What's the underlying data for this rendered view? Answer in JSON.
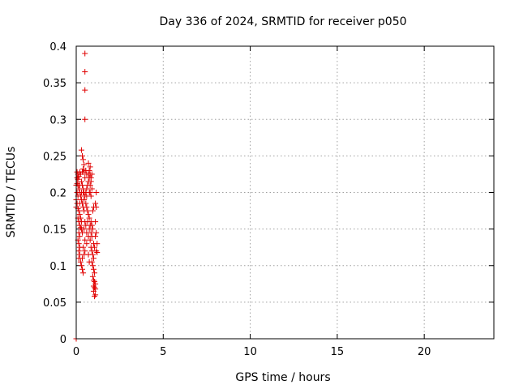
{
  "chart_data": {
    "type": "scatter",
    "title": "Day 336 of 2024, SRMTID for receiver p050",
    "xlabel": "GPS time / hours",
    "ylabel": "SRMTID / TECUs",
    "xlim": [
      0,
      24
    ],
    "ylim": [
      0,
      0.4
    ],
    "xticks": [
      "0",
      "5",
      "10",
      "15",
      "20"
    ],
    "yticks": [
      "0",
      "0.05",
      "0.1",
      "0.15",
      "0.2",
      "0.25",
      "0.3",
      "0.35",
      "0.4"
    ],
    "grid": true,
    "marker": "+",
    "color": "#e00000",
    "points": [
      [
        0.0,
        0.0
      ],
      [
        0.5,
        0.39
      ],
      [
        0.5,
        0.365
      ],
      [
        0.5,
        0.34
      ],
      [
        0.5,
        0.3
      ],
      [
        0.3,
        0.258
      ],
      [
        0.35,
        0.25
      ],
      [
        0.4,
        0.245
      ],
      [
        0.45,
        0.238
      ],
      [
        0.05,
        0.228
      ],
      [
        0.1,
        0.225
      ],
      [
        0.15,
        0.222
      ],
      [
        0.2,
        0.228
      ],
      [
        0.25,
        0.225
      ],
      [
        0.1,
        0.218
      ],
      [
        0.05,
        0.212
      ],
      [
        0.0,
        0.21
      ],
      [
        0.15,
        0.205
      ],
      [
        0.2,
        0.2
      ],
      [
        0.05,
        0.2
      ],
      [
        0.1,
        0.195
      ],
      [
        0.0,
        0.19
      ],
      [
        0.05,
        0.185
      ],
      [
        0.0,
        0.18
      ],
      [
        0.1,
        0.178
      ],
      [
        0.15,
        0.175
      ],
      [
        0.2,
        0.17
      ],
      [
        0.1,
        0.165
      ],
      [
        0.15,
        0.16
      ],
      [
        0.2,
        0.155
      ],
      [
        0.25,
        0.152
      ],
      [
        0.3,
        0.15
      ],
      [
        0.15,
        0.145
      ],
      [
        0.2,
        0.14
      ],
      [
        0.1,
        0.135
      ],
      [
        0.15,
        0.13
      ],
      [
        0.2,
        0.125
      ],
      [
        0.15,
        0.12
      ],
      [
        0.2,
        0.115
      ],
      [
        0.15,
        0.11
      ],
      [
        0.25,
        0.105
      ],
      [
        0.3,
        0.1
      ],
      [
        0.35,
        0.095
      ],
      [
        0.4,
        0.09
      ],
      [
        0.3,
        0.215
      ],
      [
        0.35,
        0.21
      ],
      [
        0.4,
        0.205
      ],
      [
        0.45,
        0.2
      ],
      [
        0.5,
        0.195
      ],
      [
        0.55,
        0.2
      ],
      [
        0.6,
        0.205
      ],
      [
        0.65,
        0.21
      ],
      [
        0.7,
        0.215
      ],
      [
        0.75,
        0.22
      ],
      [
        0.7,
        0.225
      ],
      [
        0.75,
        0.23
      ],
      [
        0.8,
        0.235
      ],
      [
        0.7,
        0.24
      ],
      [
        0.8,
        0.225
      ],
      [
        0.85,
        0.22
      ],
      [
        0.9,
        0.225
      ],
      [
        0.85,
        0.215
      ],
      [
        0.8,
        0.21
      ],
      [
        0.9,
        0.205
      ],
      [
        0.75,
        0.2
      ],
      [
        0.6,
        0.195
      ],
      [
        0.55,
        0.185
      ],
      [
        0.6,
        0.18
      ],
      [
        0.65,
        0.175
      ],
      [
        0.7,
        0.17
      ],
      [
        0.75,
        0.165
      ],
      [
        0.5,
        0.16
      ],
      [
        0.55,
        0.155
      ],
      [
        0.45,
        0.15
      ],
      [
        0.6,
        0.145
      ],
      [
        0.7,
        0.14
      ],
      [
        0.5,
        0.135
      ],
      [
        0.6,
        0.13
      ],
      [
        0.4,
        0.125
      ],
      [
        0.5,
        0.12
      ],
      [
        0.45,
        0.115
      ],
      [
        0.35,
        0.11
      ],
      [
        0.4,
        0.2
      ],
      [
        0.45,
        0.19
      ],
      [
        0.35,
        0.185
      ],
      [
        0.4,
        0.18
      ],
      [
        0.45,
        0.175
      ],
      [
        0.85,
        0.16
      ],
      [
        0.9,
        0.155
      ],
      [
        0.95,
        0.15
      ],
      [
        0.85,
        0.145
      ],
      [
        0.9,
        0.14
      ],
      [
        0.8,
        0.135
      ],
      [
        0.85,
        0.125
      ],
      [
        0.9,
        0.12
      ],
      [
        0.95,
        0.115
      ],
      [
        1.0,
        0.11
      ],
      [
        0.9,
        0.105
      ],
      [
        0.95,
        0.1
      ],
      [
        1.0,
        0.095
      ],
      [
        1.05,
        0.09
      ],
      [
        0.95,
        0.085
      ],
      [
        1.0,
        0.08
      ],
      [
        1.05,
        0.078
      ],
      [
        1.1,
        0.075
      ],
      [
        1.0,
        0.072
      ],
      [
        1.05,
        0.07
      ],
      [
        1.1,
        0.068
      ],
      [
        1.0,
        0.065
      ],
      [
        1.1,
        0.06
      ],
      [
        1.05,
        0.058
      ],
      [
        1.15,
        0.2
      ],
      [
        1.1,
        0.185
      ],
      [
        1.15,
        0.18
      ],
      [
        1.1,
        0.16
      ],
      [
        1.15,
        0.145
      ],
      [
        1.1,
        0.14
      ],
      [
        1.2,
        0.13
      ],
      [
        1.15,
        0.12
      ],
      [
        1.2,
        0.118
      ],
      [
        1.05,
        0.125
      ],
      [
        1.0,
        0.13
      ],
      [
        0.95,
        0.175
      ],
      [
        1.0,
        0.18
      ],
      [
        0.55,
        0.23
      ],
      [
        0.6,
        0.225
      ],
      [
        0.5,
        0.22
      ],
      [
        0.45,
        0.228
      ],
      [
        0.4,
        0.232
      ],
      [
        0.35,
        0.228
      ],
      [
        0.8,
        0.2
      ],
      [
        0.85,
        0.195
      ],
      [
        0.3,
        0.19
      ],
      [
        0.25,
        0.195
      ],
      [
        0.2,
        0.185
      ],
      [
        0.25,
        0.165
      ],
      [
        0.3,
        0.16
      ],
      [
        0.35,
        0.145
      ],
      [
        0.05,
        0.22
      ],
      [
        0.1,
        0.21
      ],
      [
        0.2,
        0.21
      ],
      [
        0.3,
        0.2
      ],
      [
        0.75,
        0.15
      ],
      [
        0.8,
        0.155
      ],
      [
        0.65,
        0.16
      ],
      [
        0.7,
        0.115
      ],
      [
        0.75,
        0.105
      ]
    ]
  }
}
